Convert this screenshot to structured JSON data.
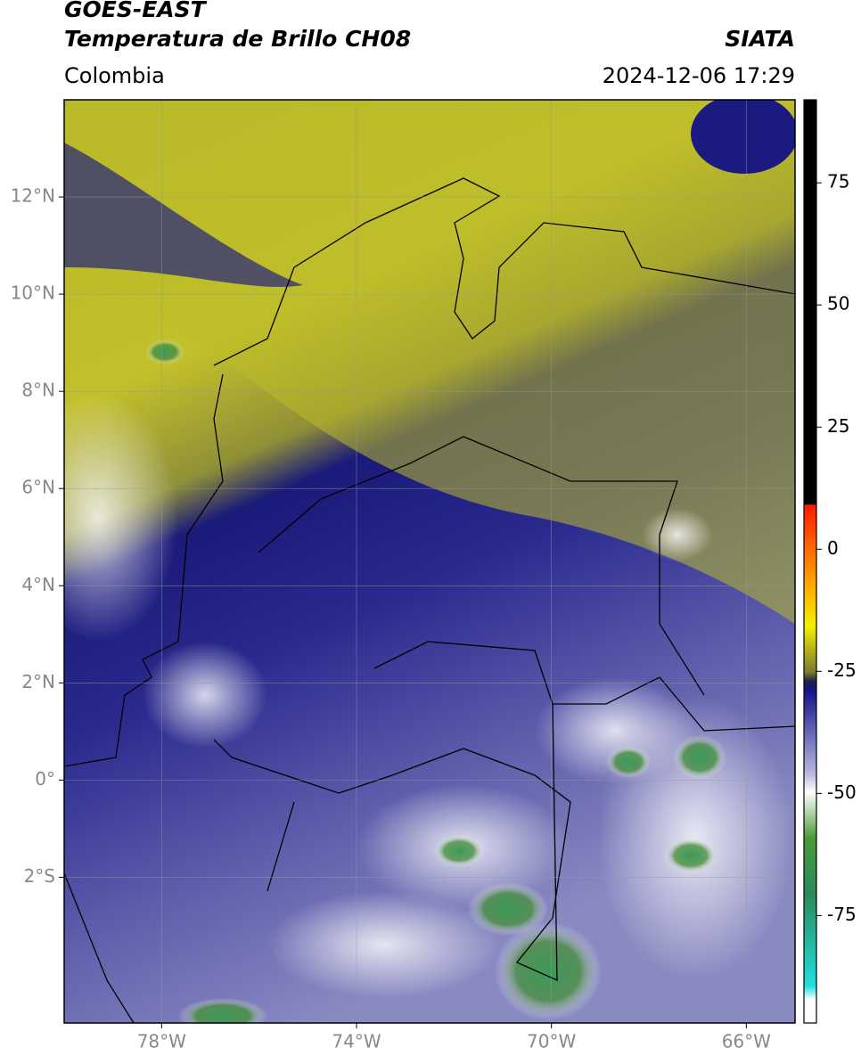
{
  "header": {
    "satellite": "GOES-EAST",
    "product": "Temperatura de Brillo CH08",
    "source": "SIATA",
    "region": "Colombia",
    "datetime": "2024-12-06 17:29"
  },
  "map": {
    "xlim": [
      -80,
      -65
    ],
    "ylim": [
      -5,
      14
    ],
    "xticks": [
      {
        "value": -78,
        "label": "78°W"
      },
      {
        "value": -74,
        "label": "74°W"
      },
      {
        "value": -70,
        "label": "70°W"
      },
      {
        "value": -66,
        "label": "66°W"
      }
    ],
    "yticks": [
      {
        "value": 12,
        "label": "12°N"
      },
      {
        "value": 10,
        "label": "10°N"
      },
      {
        "value": 8,
        "label": "8°N"
      },
      {
        "value": 6,
        "label": "6°N"
      },
      {
        "value": 4,
        "label": "4°N"
      },
      {
        "value": 2,
        "label": "2°N"
      },
      {
        "value": 0,
        "label": "0°"
      },
      {
        "value": -2,
        "label": "2°S"
      }
    ],
    "grid": true
  },
  "colorbar": {
    "lim": [
      -97,
      92
    ],
    "ticks": [
      75,
      50,
      25,
      0,
      -25,
      -50,
      -75
    ]
  }
}
